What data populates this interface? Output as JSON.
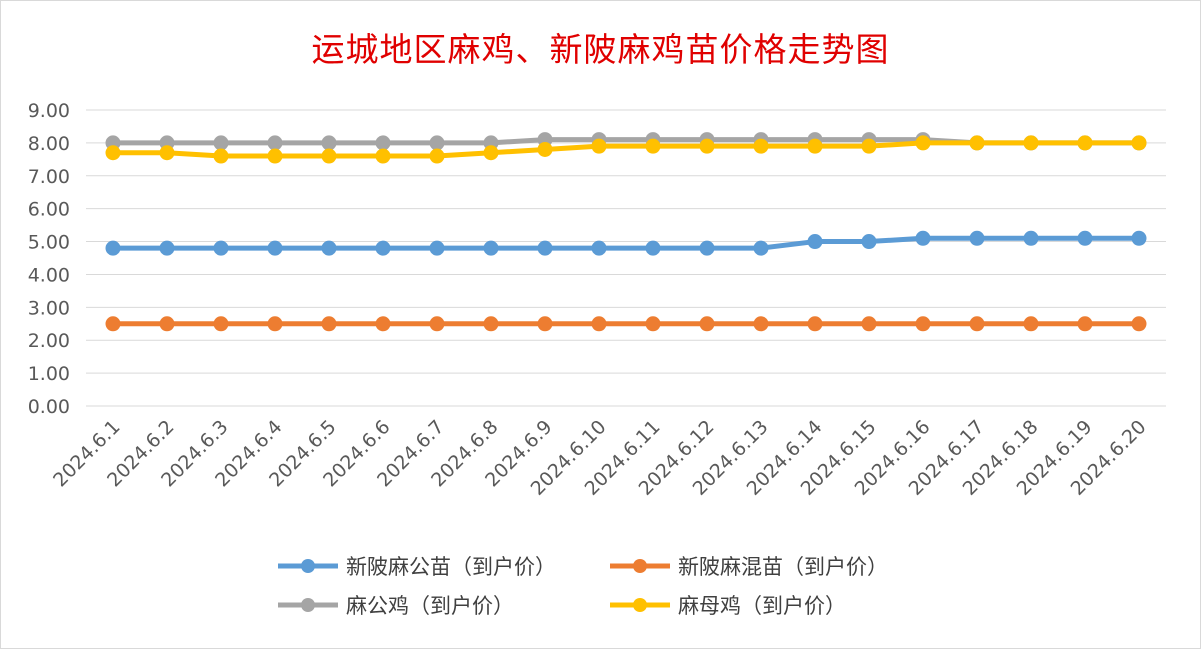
{
  "chart_data": {
    "type": "line",
    "title": "运城地区麻鸡、新陂麻鸡苗价格走势图",
    "categories": [
      "2024.6.1",
      "2024.6.2",
      "2024.6.3",
      "2024.6.4",
      "2024.6.5",
      "2024.6.6",
      "2024.6.7",
      "2024.6.8",
      "2024.6.9",
      "2024.6.10",
      "2024.6.11",
      "2024.6.12",
      "2024.6.13",
      "2024.6.14",
      "2024.6.15",
      "2024.6.16",
      "2024.6.17",
      "2024.6.18",
      "2024.6.19",
      "2024.6.20"
    ],
    "yticks": [
      "0.00",
      "1.00",
      "2.00",
      "3.00",
      "4.00",
      "5.00",
      "6.00",
      "7.00",
      "8.00",
      "9.00"
    ],
    "ylim": [
      0,
      9
    ],
    "grid": true,
    "legend_position": "bottom",
    "series": [
      {
        "name": "新陂麻公苗（到户价）",
        "color": "#5b9bd5",
        "values": [
          4.8,
          4.8,
          4.8,
          4.8,
          4.8,
          4.8,
          4.8,
          4.8,
          4.8,
          4.8,
          4.8,
          4.8,
          4.8,
          5.0,
          5.0,
          5.1,
          5.1,
          5.1,
          5.1,
          5.1
        ]
      },
      {
        "name": "新陂麻混苗（到户价）",
        "color": "#ed7d31",
        "values": [
          2.5,
          2.5,
          2.5,
          2.5,
          2.5,
          2.5,
          2.5,
          2.5,
          2.5,
          2.5,
          2.5,
          2.5,
          2.5,
          2.5,
          2.5,
          2.5,
          2.5,
          2.5,
          2.5,
          2.5
        ]
      },
      {
        "name": "麻公鸡（到户价）",
        "color": "#a5a5a5",
        "values": [
          8.0,
          8.0,
          8.0,
          8.0,
          8.0,
          8.0,
          8.0,
          8.0,
          8.1,
          8.1,
          8.1,
          8.1,
          8.1,
          8.1,
          8.1,
          8.1,
          8.0,
          8.0,
          8.0,
          8.0
        ]
      },
      {
        "name": "麻母鸡（到户价）",
        "color": "#ffc000",
        "values": [
          7.7,
          7.7,
          7.6,
          7.6,
          7.6,
          7.6,
          7.6,
          7.7,
          7.8,
          7.9,
          7.9,
          7.9,
          7.9,
          7.9,
          7.9,
          8.0,
          8.0,
          8.0,
          8.0,
          8.0
        ]
      }
    ]
  }
}
